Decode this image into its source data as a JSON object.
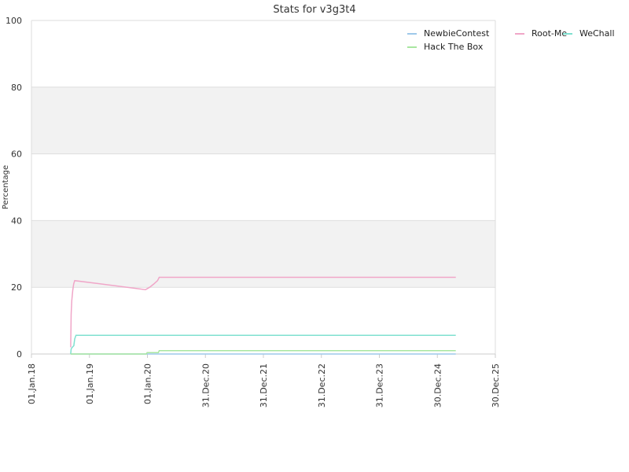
{
  "chart_data": {
    "type": "line",
    "title": "Stats for v3g3t4",
    "xlabel": "",
    "ylabel": "Percentage",
    "ylim": [
      0,
      100
    ],
    "yticks": [
      0,
      20,
      40,
      60,
      80,
      100
    ],
    "xlim": [
      "2018-01-01",
      "2025-12-30"
    ],
    "xticks": [
      {
        "date": "2018-01-01",
        "label": "01.Jan.18"
      },
      {
        "date": "2019-01-01",
        "label": "01.Jan.19"
      },
      {
        "date": "2020-01-01",
        "label": "01.Jan.20"
      },
      {
        "date": "2020-12-31",
        "label": "31.Dec.20"
      },
      {
        "date": "2021-12-31",
        "label": "31.Dec.21"
      },
      {
        "date": "2022-12-31",
        "label": "31.Dec.22"
      },
      {
        "date": "2023-12-31",
        "label": "31.Dec.23"
      },
      {
        "date": "2024-12-30",
        "label": "30.Dec.24"
      },
      {
        "date": "2025-12-30",
        "label": "30.Dec.25"
      }
    ],
    "grid": true,
    "alternating_bands": true,
    "legend_position": "top-right",
    "series": [
      {
        "name": "NewbieContest",
        "color": "#9ec9ea",
        "points": [
          [
            "2018-09-05",
            0
          ],
          [
            "2025-04-25",
            0
          ]
        ]
      },
      {
        "name": "Root-Me",
        "color": "#f0a6c8",
        "points": [
          [
            "2018-09-05",
            2
          ],
          [
            "2018-09-08",
            12
          ],
          [
            "2018-09-12",
            16
          ],
          [
            "2018-09-18",
            19
          ],
          [
            "2018-09-24",
            21
          ],
          [
            "2018-09-30",
            22
          ],
          [
            "2019-12-20",
            19.3
          ],
          [
            "2020-01-15",
            20
          ],
          [
            "2020-02-10",
            21
          ],
          [
            "2020-03-05",
            22
          ],
          [
            "2020-03-15",
            23
          ],
          [
            "2025-04-25",
            23
          ]
        ]
      },
      {
        "name": "WeChall",
        "color": "#7fe0d0",
        "points": [
          [
            "2018-09-05",
            0
          ],
          [
            "2018-09-08",
            1.5
          ],
          [
            "2018-09-15",
            2
          ],
          [
            "2018-09-25",
            2.5
          ],
          [
            "2018-09-30",
            4.5
          ],
          [
            "2018-10-08",
            5.6
          ],
          [
            "2025-04-25",
            5.6
          ]
        ]
      },
      {
        "name": "Hack The Box",
        "color": "#a8e6a0",
        "points": [
          [
            "2018-09-05",
            0
          ],
          [
            "2019-12-25",
            0
          ],
          [
            "2019-12-30",
            0.4
          ],
          [
            "2020-03-10",
            0.4
          ],
          [
            "2020-03-15",
            1
          ],
          [
            "2025-04-25",
            1
          ]
        ]
      }
    ]
  }
}
